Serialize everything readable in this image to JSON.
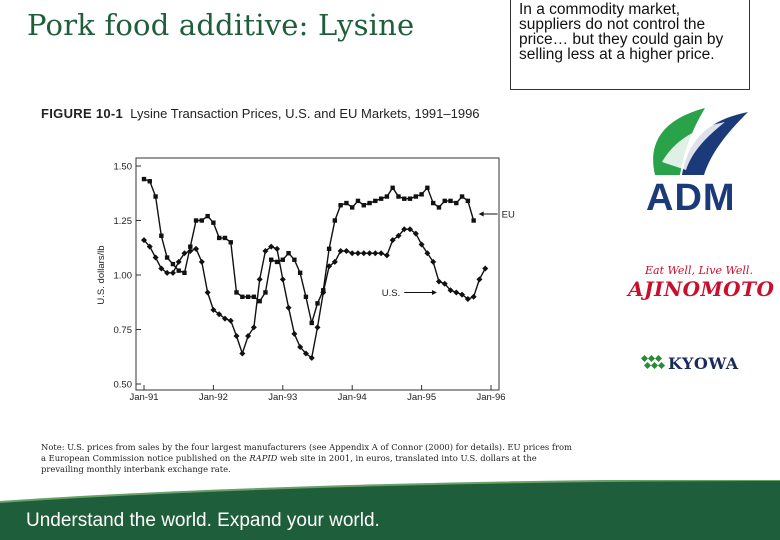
{
  "slide": {
    "title": "Pork food additive: Lysine",
    "callout": "In a commodity market, suppliers do not control the price… but they could gain by selling less at a higher price.",
    "footer": "Understand the world. Expand your world.",
    "colors": {
      "title": "#1f5e3a",
      "footer": "#1f5e3a"
    }
  },
  "figure": {
    "label": "FIGURE 10-1",
    "title": "Lysine Transaction Prices, U.S. and EU Markets, 1991–1996",
    "note_prefix": "Note: U.S. prices from sales by the four largest manufacturers (see Appendix A of Connor (2000) for details). EU prices from a European Commission notice published on the ",
    "note_italic": "RAPID",
    "note_suffix": " web site in 2001, in euros, translated into U.S. dollars at the prevailing monthly interbank exchange rate."
  },
  "logos": {
    "adm": "ADM",
    "ajinomoto_tagline": "Eat Well, Live Well.",
    "ajinomoto": "AJINOMOTO",
    "kyowa": "KYOWA"
  },
  "chart_data": {
    "type": "line",
    "title": "Lysine Transaction Prices, U.S. and EU Markets, 1991–1996",
    "xlabel": "",
    "ylabel": "U.S. dollars/lb",
    "xlim": [
      1991.0,
      1996.0
    ],
    "ylim": [
      0.5,
      1.5
    ],
    "xticks": [
      {
        "value": 1991.0,
        "label": "Jan-91"
      },
      {
        "value": 1992.0,
        "label": "Jan-92"
      },
      {
        "value": 1993.0,
        "label": "Jan-93"
      },
      {
        "value": 1994.0,
        "label": "Jan-94"
      },
      {
        "value": 1995.0,
        "label": "Jan-95"
      },
      {
        "value": 1996.0,
        "label": "Jan-96"
      }
    ],
    "yticks": [
      {
        "value": 0.5,
        "label": "0.50"
      },
      {
        "value": 0.75,
        "label": "0.75"
      },
      {
        "value": 1.0,
        "label": "1.00"
      },
      {
        "value": 1.25,
        "label": "1.25"
      },
      {
        "value": 1.5,
        "label": "1.50"
      }
    ],
    "series": [
      {
        "name": "EU",
        "marker": "square",
        "points": [
          [
            1991.0,
            1.44
          ],
          [
            1991.083,
            1.43
          ],
          [
            1991.167,
            1.36
          ],
          [
            1991.25,
            1.18
          ],
          [
            1991.333,
            1.08
          ],
          [
            1991.417,
            1.05
          ],
          [
            1991.5,
            1.02
          ],
          [
            1991.583,
            1.01
          ],
          [
            1991.667,
            1.13
          ],
          [
            1991.75,
            1.25
          ],
          [
            1991.833,
            1.25
          ],
          [
            1991.917,
            1.27
          ],
          [
            1992.0,
            1.24
          ],
          [
            1992.083,
            1.17
          ],
          [
            1992.167,
            1.17
          ],
          [
            1992.25,
            1.15
          ],
          [
            1992.333,
            0.92
          ],
          [
            1992.417,
            0.9
          ],
          [
            1992.5,
            0.9
          ],
          [
            1992.583,
            0.9
          ],
          [
            1992.667,
            0.88
          ],
          [
            1992.75,
            0.92
          ],
          [
            1992.833,
            1.07
          ],
          [
            1992.917,
            1.06
          ],
          [
            1993.0,
            1.07
          ],
          [
            1993.083,
            1.1
          ],
          [
            1993.167,
            1.07
          ],
          [
            1993.25,
            1.01
          ],
          [
            1993.333,
            0.9
          ],
          [
            1993.417,
            0.78
          ],
          [
            1993.5,
            0.87
          ],
          [
            1993.583,
            0.93
          ],
          [
            1993.667,
            1.12
          ],
          [
            1993.75,
            1.25
          ],
          [
            1993.833,
            1.32
          ],
          [
            1993.917,
            1.33
          ],
          [
            1994.0,
            1.31
          ],
          [
            1994.083,
            1.34
          ],
          [
            1994.167,
            1.32
          ],
          [
            1994.25,
            1.33
          ],
          [
            1994.333,
            1.34
          ],
          [
            1994.417,
            1.35
          ],
          [
            1994.5,
            1.36
          ],
          [
            1994.583,
            1.4
          ],
          [
            1994.667,
            1.36
          ],
          [
            1994.75,
            1.35
          ],
          [
            1994.833,
            1.35
          ],
          [
            1994.917,
            1.36
          ],
          [
            1995.0,
            1.37
          ],
          [
            1995.083,
            1.4
          ],
          [
            1995.167,
            1.33
          ],
          [
            1995.25,
            1.31
          ],
          [
            1995.333,
            1.34
          ],
          [
            1995.417,
            1.34
          ],
          [
            1995.5,
            1.33
          ],
          [
            1995.583,
            1.36
          ],
          [
            1995.667,
            1.34
          ],
          [
            1995.75,
            1.25
          ]
        ]
      },
      {
        "name": "U.S.",
        "marker": "diamond",
        "points": [
          [
            1991.0,
            1.16
          ],
          [
            1991.083,
            1.13
          ],
          [
            1991.167,
            1.08
          ],
          [
            1991.25,
            1.03
          ],
          [
            1991.333,
            1.01
          ],
          [
            1991.417,
            1.01
          ],
          [
            1991.5,
            1.06
          ],
          [
            1991.583,
            1.1
          ],
          [
            1991.667,
            1.11
          ],
          [
            1991.75,
            1.12
          ],
          [
            1991.833,
            1.06
          ],
          [
            1991.917,
            0.92
          ],
          [
            1992.0,
            0.84
          ],
          [
            1992.083,
            0.82
          ],
          [
            1992.167,
            0.8
          ],
          [
            1992.25,
            0.79
          ],
          [
            1992.333,
            0.72
          ],
          [
            1992.417,
            0.64
          ],
          [
            1992.5,
            0.72
          ],
          [
            1992.583,
            0.76
          ],
          [
            1992.667,
            0.98
          ],
          [
            1992.75,
            1.11
          ],
          [
            1992.833,
            1.13
          ],
          [
            1992.917,
            1.12
          ],
          [
            1993.0,
            0.98
          ],
          [
            1993.083,
            0.85
          ],
          [
            1993.167,
            0.73
          ],
          [
            1993.25,
            0.67
          ],
          [
            1993.333,
            0.64
          ],
          [
            1993.417,
            0.62
          ],
          [
            1993.5,
            0.76
          ],
          [
            1993.583,
            0.92
          ],
          [
            1993.667,
            1.04
          ],
          [
            1993.75,
            1.06
          ],
          [
            1993.833,
            1.11
          ],
          [
            1993.917,
            1.11
          ],
          [
            1994.0,
            1.1
          ],
          [
            1994.083,
            1.1
          ],
          [
            1994.167,
            1.1
          ],
          [
            1994.25,
            1.1
          ],
          [
            1994.333,
            1.1
          ],
          [
            1994.417,
            1.1
          ],
          [
            1994.5,
            1.09
          ],
          [
            1994.583,
            1.16
          ],
          [
            1994.667,
            1.18
          ],
          [
            1994.75,
            1.21
          ],
          [
            1994.833,
            1.21
          ],
          [
            1994.917,
            1.19
          ],
          [
            1995.0,
            1.14
          ],
          [
            1995.083,
            1.1
          ],
          [
            1995.167,
            1.06
          ],
          [
            1995.25,
            0.97
          ],
          [
            1995.333,
            0.96
          ],
          [
            1995.417,
            0.93
          ],
          [
            1995.5,
            0.92
          ],
          [
            1995.583,
            0.91
          ],
          [
            1995.667,
            0.89
          ],
          [
            1995.75,
            0.9
          ],
          [
            1995.833,
            0.98
          ],
          [
            1995.917,
            1.03
          ]
        ]
      }
    ]
  }
}
